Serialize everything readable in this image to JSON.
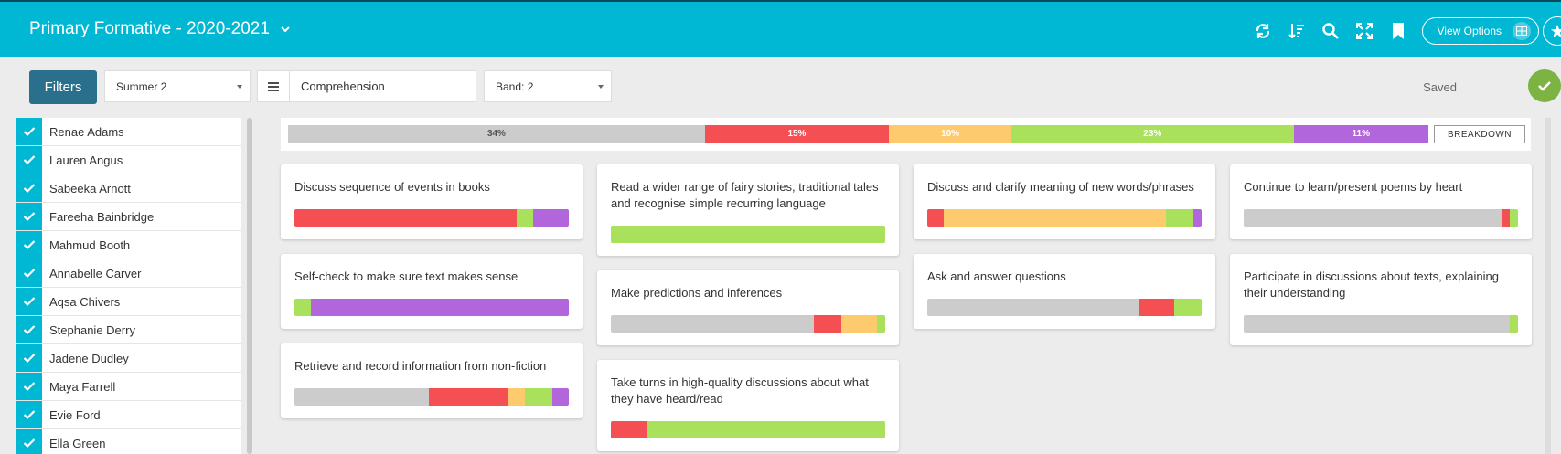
{
  "colors": {
    "header": "#00b8d4",
    "grey": "#cccccc",
    "red": "#f44f52",
    "amber": "#fdcb6e",
    "green": "#a9e05c",
    "purple": "#b266dc",
    "filters": "#2a6f8c",
    "saved": "#7cb342"
  },
  "header": {
    "title": "Primary Formative - 2020-2021",
    "view_options_label": "View Options",
    "icons": [
      "refresh-icon",
      "sort-icon",
      "search-icon",
      "expand-icon",
      "bookmark-icon"
    ]
  },
  "toolbar": {
    "filters_label": "Filters",
    "term_value": "Summer 2",
    "subject_value": "Comprehension",
    "band_value": "Band: 2",
    "saved_label": "Saved"
  },
  "students": [
    "Renae Adams",
    "Lauren Angus",
    "Sabeeka Arnott",
    "Fareeha Bainbridge",
    "Mahmud Booth",
    "Annabelle Carver",
    "Aqsa Chivers",
    "Stephanie Derry",
    "Jadene Dudley",
    "Maya Farrell",
    "Evie Ford",
    "Ella Green"
  ],
  "summary": {
    "segments": [
      {
        "label": "34%",
        "value": 34,
        "color": "grey"
      },
      {
        "label": "15%",
        "value": 15,
        "color": "red"
      },
      {
        "label": "10%",
        "value": 10,
        "color": "amber"
      },
      {
        "label": "23%",
        "value": 23,
        "color": "green"
      },
      {
        "label": "11%",
        "value": 11,
        "color": "purple"
      }
    ],
    "breakdown_label": "BREAKDOWN"
  },
  "cards": [
    {
      "title": "Discuss sequence of events in books",
      "segments": [
        {
          "c": "red",
          "v": 81
        },
        {
          "c": "green",
          "v": 6
        },
        {
          "c": "purple",
          "v": 13
        }
      ]
    },
    {
      "title": "Self-check to make sure text makes sense",
      "segments": [
        {
          "c": "green",
          "v": 6
        },
        {
          "c": "purple",
          "v": 94
        }
      ]
    },
    {
      "title": "Retrieve and record information from non-fiction",
      "segments": [
        {
          "c": "grey",
          "v": 49
        },
        {
          "c": "red",
          "v": 29
        },
        {
          "c": "amber",
          "v": 6
        },
        {
          "c": "green",
          "v": 10
        },
        {
          "c": "purple",
          "v": 6
        }
      ]
    },
    {
      "title": "Read a wider range of fairy stories, traditional tales and recognise simple recurring language",
      "segments": [
        {
          "c": "green",
          "v": 100
        }
      ]
    },
    {
      "title": "Make predictions and inferences",
      "segments": [
        {
          "c": "grey",
          "v": 74
        },
        {
          "c": "red",
          "v": 10
        },
        {
          "c": "amber",
          "v": 13
        },
        {
          "c": "green",
          "v": 3
        }
      ]
    },
    {
      "title": "Take turns in high-quality discussions about what they have heard/read",
      "segments": [
        {
          "c": "red",
          "v": 13
        },
        {
          "c": "green",
          "v": 87
        }
      ]
    },
    {
      "title": "Discuss and clarify meaning of new words/phrases",
      "segments": [
        {
          "c": "red",
          "v": 6
        },
        {
          "c": "amber",
          "v": 81
        },
        {
          "c": "green",
          "v": 10
        },
        {
          "c": "purple",
          "v": 3
        }
      ]
    },
    {
      "title": "Ask and answer questions",
      "segments": [
        {
          "c": "grey",
          "v": 77
        },
        {
          "c": "red",
          "v": 13
        },
        {
          "c": "green",
          "v": 10
        }
      ]
    },
    {
      "title": "Continue to learn/present poems by heart",
      "segments": [
        {
          "c": "grey",
          "v": 94
        },
        {
          "c": "red",
          "v": 3
        },
        {
          "c": "green",
          "v": 3
        }
      ]
    },
    {
      "title": "Participate in discussions about texts, explaining their understanding",
      "segments": [
        {
          "c": "grey",
          "v": 97
        },
        {
          "c": "green",
          "v": 3
        }
      ]
    }
  ]
}
